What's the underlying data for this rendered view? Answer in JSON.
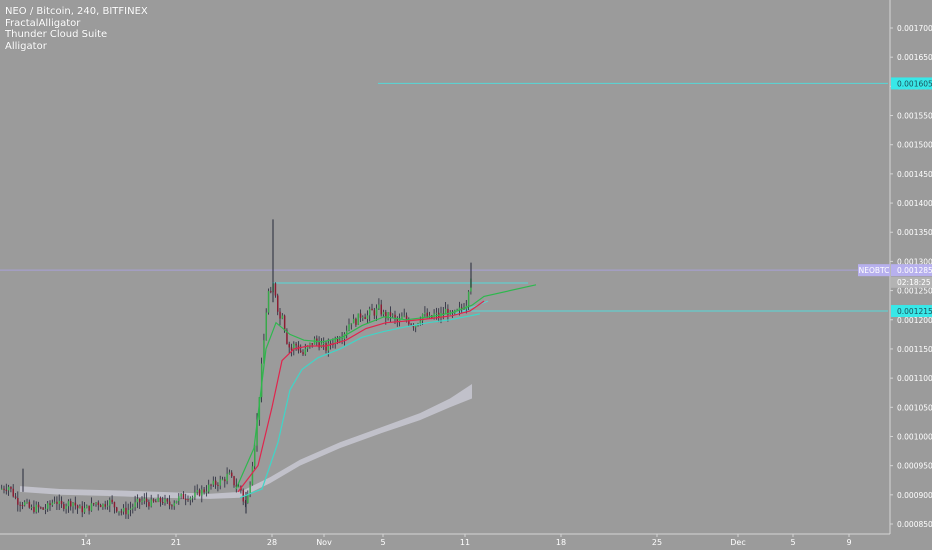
{
  "header": {
    "symbol_line": "NEO / Bitcoin, 240, BITFINEX",
    "indicators": [
      "FractalAlligator",
      "Thunder Cloud Suite",
      "Alligator"
    ]
  },
  "colors": {
    "background": "#9b9b9b",
    "up_candle": "#38a84a",
    "down_candle": "#8c1c32",
    "wick": "#26283a",
    "jaw": "#3fd6c8",
    "teeth": "#e0254d",
    "lips": "#2eb84e",
    "cloud": "#c8c8d2",
    "price_line": "#a8a0d8",
    "level_line": "#55d8d8",
    "price_label_bg": "#b7b0ee",
    "level_label_bg": "#38e8e8"
  },
  "chart_data": {
    "type": "candlestick",
    "symbol": "NEO / Bitcoin",
    "interval": "240",
    "exchange": "BITFINEX",
    "y_axis": {
      "ticks": [
        "0.001700",
        "0.001650",
        "0.001600",
        "0.001550",
        "0.001500",
        "0.001450",
        "0.001400",
        "0.001350",
        "0.001300",
        "0.001250",
        "0.001200",
        "0.001150",
        "0.001100",
        "0.001050",
        "0.001000",
        "0.000950",
        "0.000900",
        "0.000850"
      ],
      "range": [
        0.000835,
        0.00176
      ]
    },
    "x_axis": {
      "ticks": [
        "14",
        "21",
        "28",
        "Nov",
        "5",
        "11",
        "18",
        "25",
        "Dec",
        "5",
        "9"
      ]
    },
    "price_labels": [
      {
        "text": "0.001605",
        "value": 0.001605,
        "kind": "level"
      },
      {
        "text": "NEOBTC",
        "value": 0.001285,
        "kind": "symbol"
      },
      {
        "text": "0.001285",
        "value": 0.001285,
        "kind": "price"
      },
      {
        "text": "02:18:25",
        "value": 0.001265,
        "kind": "timer"
      },
      {
        "text": "0.001215",
        "value": 0.001215,
        "kind": "level"
      }
    ],
    "horizontal_lines": [
      {
        "value": 0.001605,
        "from": "Nov 4",
        "style": "level"
      },
      {
        "value": 0.001285,
        "from": "start",
        "style": "price"
      },
      {
        "value": 0.001215,
        "from": "Nov 10",
        "style": "level"
      }
    ],
    "trend_lines": [
      {
        "from": [
          "Oct 28",
          0.001263
        ],
        "to": [
          "Nov 16",
          0.001263
        ]
      },
      {
        "from": [
          "Nov 9",
          0.001205
        ],
        "to": [
          "Nov 14",
          0.001232
        ]
      }
    ],
    "close_path": [
      [
        0,
        0.00091
      ],
      [
        8,
        0.000915
      ],
      [
        16,
        0.00089
      ],
      [
        24,
        0.000885
      ],
      [
        30,
        0.000875
      ],
      [
        36,
        0.000878
      ],
      [
        42,
        0.000875
      ],
      [
        48,
        0.00088
      ],
      [
        54,
        0.000892
      ],
      [
        60,
        0.00088
      ],
      [
        66,
        0.000885
      ],
      [
        72,
        0.000888
      ],
      [
        78,
        0.000875
      ],
      [
        84,
        0.000875
      ],
      [
        90,
        0.00088
      ],
      [
        96,
        0.000888
      ],
      [
        102,
        0.000882
      ],
      [
        108,
        0.00089
      ],
      [
        114,
        0.00088
      ],
      [
        120,
        0.000872
      ],
      [
        126,
        0.000872
      ],
      [
        132,
        0.00088
      ],
      [
        138,
        0.000888
      ],
      [
        144,
        0.00089
      ],
      [
        150,
        0.000885
      ],
      [
        156,
        0.000888
      ],
      [
        162,
        0.00089
      ],
      [
        168,
        0.000882
      ],
      [
        174,
        0.00089
      ],
      [
        180,
        0.000896
      ],
      [
        186,
        0.000898
      ],
      [
        192,
        0.000896
      ],
      [
        198,
        0.000904
      ],
      [
        204,
        0.000908
      ],
      [
        210,
        0.000916
      ],
      [
        216,
        0.00092
      ],
      [
        222,
        0.000925
      ],
      [
        228,
        0.000935
      ],
      [
        234,
        0.000918
      ],
      [
        240,
        0.00091
      ],
      [
        244,
        0.00088
      ],
      [
        248,
        0.000905
      ],
      [
        252,
        0.00096
      ],
      [
        256,
        0.00102
      ],
      [
        260,
        0.0011
      ],
      [
        264,
        0.00118
      ],
      [
        267,
        0.00125
      ],
      [
        270,
        0.00124
      ],
      [
        273,
        0.001265
      ],
      [
        276,
        0.00123
      ],
      [
        279,
        0.0012
      ],
      [
        282,
        0.001215
      ],
      [
        285,
        0.00117
      ],
      [
        288,
        0.001155
      ],
      [
        291,
        0.001148
      ],
      [
        294,
        0.00116
      ],
      [
        298,
        0.00115
      ],
      [
        302,
        0.00114
      ],
      [
        306,
        0.00115
      ],
      [
        310,
        0.001158
      ],
      [
        314,
        0.001165
      ],
      [
        318,
        0.00116
      ],
      [
        322,
        0.001155
      ],
      [
        326,
        0.00115
      ],
      [
        330,
        0.00116
      ],
      [
        334,
        0.001165
      ],
      [
        338,
        0.00117
      ],
      [
        342,
        0.001175
      ],
      [
        346,
        0.001185
      ],
      [
        350,
        0.0012
      ],
      [
        354,
        0.001195
      ],
      [
        358,
        0.001205
      ],
      [
        362,
        0.00121
      ],
      [
        366,
        0.001205
      ],
      [
        370,
        0.001215
      ],
      [
        374,
        0.001212
      ],
      [
        378,
        0.00122
      ],
      [
        382,
        0.00121
      ],
      [
        386,
        0.001205
      ],
      [
        390,
        0.00121
      ],
      [
        394,
        0.0012
      ],
      [
        398,
        0.001195
      ],
      [
        402,
        0.001205
      ],
      [
        406,
        0.0012
      ],
      [
        410,
        0.001195
      ],
      [
        414,
        0.00119
      ],
      [
        418,
        0.0012
      ],
      [
        422,
        0.00121
      ],
      [
        426,
        0.001205
      ],
      [
        430,
        0.0012
      ],
      [
        434,
        0.00121
      ],
      [
        438,
        0.001205
      ],
      [
        442,
        0.00121
      ],
      [
        446,
        0.001218
      ],
      [
        450,
        0.001205
      ],
      [
        454,
        0.00121
      ],
      [
        458,
        0.001215
      ],
      [
        462,
        0.001222
      ],
      [
        466,
        0.00123
      ],
      [
        469,
        0.00127
      ],
      [
        472,
        0.001285
      ]
    ],
    "alligator": {
      "jaw": [
        [
          240,
          0.000895
        ],
        [
          262,
          0.00091
        ],
        [
          278,
          0.00099
        ],
        [
          290,
          0.00108
        ],
        [
          302,
          0.001115
        ],
        [
          318,
          0.001135
        ],
        [
          340,
          0.00115
        ],
        [
          362,
          0.00117
        ],
        [
          384,
          0.00118
        ],
        [
          406,
          0.001188
        ],
        [
          428,
          0.001195
        ],
        [
          450,
          0.0012
        ],
        [
          480,
          0.00121
        ]
      ],
      "teeth": [
        [
          238,
          0.000905
        ],
        [
          258,
          0.00095
        ],
        [
          272,
          0.00105
        ],
        [
          282,
          0.00113
        ],
        [
          294,
          0.00115
        ],
        [
          308,
          0.001155
        ],
        [
          326,
          0.001155
        ],
        [
          346,
          0.001165
        ],
        [
          366,
          0.001185
        ],
        [
          386,
          0.001195
        ],
        [
          408,
          0.001198
        ],
        [
          430,
          0.001202
        ],
        [
          452,
          0.001207
        ],
        [
          470,
          0.001215
        ],
        [
          484,
          0.001232
        ]
      ],
      "lips": [
        [
          236,
          0.00091
        ],
        [
          254,
          0.00098
        ],
        [
          266,
          0.00115
        ],
        [
          276,
          0.001195
        ],
        [
          290,
          0.001175
        ],
        [
          304,
          0.001165
        ],
        [
          322,
          0.001162
        ],
        [
          342,
          0.00117
        ],
        [
          362,
          0.00119
        ],
        [
          384,
          0.001205
        ],
        [
          406,
          0.0012
        ],
        [
          430,
          0.001205
        ],
        [
          452,
          0.001212
        ],
        [
          472,
          0.001225
        ],
        [
          484,
          0.00124
        ],
        [
          536,
          0.00126
        ]
      ]
    },
    "cloud": {
      "upper": [
        [
          20,
          0.000915
        ],
        [
          60,
          0.00091
        ],
        [
          110,
          0.000908
        ],
        [
          160,
          0.000905
        ],
        [
          210,
          0.000902
        ],
        [
          240,
          0.000905
        ],
        [
          270,
          0.00093
        ],
        [
          300,
          0.00096
        ],
        [
          340,
          0.00099
        ],
        [
          380,
          0.001015
        ],
        [
          420,
          0.00104
        ],
        [
          450,
          0.001065
        ],
        [
          472,
          0.00109
        ]
      ],
      "lower": [
        [
          472,
          0.001065
        ],
        [
          450,
          0.00105
        ],
        [
          420,
          0.001028
        ],
        [
          380,
          0.001005
        ],
        [
          340,
          0.00098
        ],
        [
          300,
          0.00095
        ],
        [
          270,
          0.00092
        ],
        [
          240,
          0.000895
        ],
        [
          210,
          0.000893
        ],
        [
          160,
          0.000895
        ],
        [
          110,
          0.000898
        ],
        [
          60,
          0.0009
        ],
        [
          20,
          0.000905
        ]
      ]
    }
  }
}
